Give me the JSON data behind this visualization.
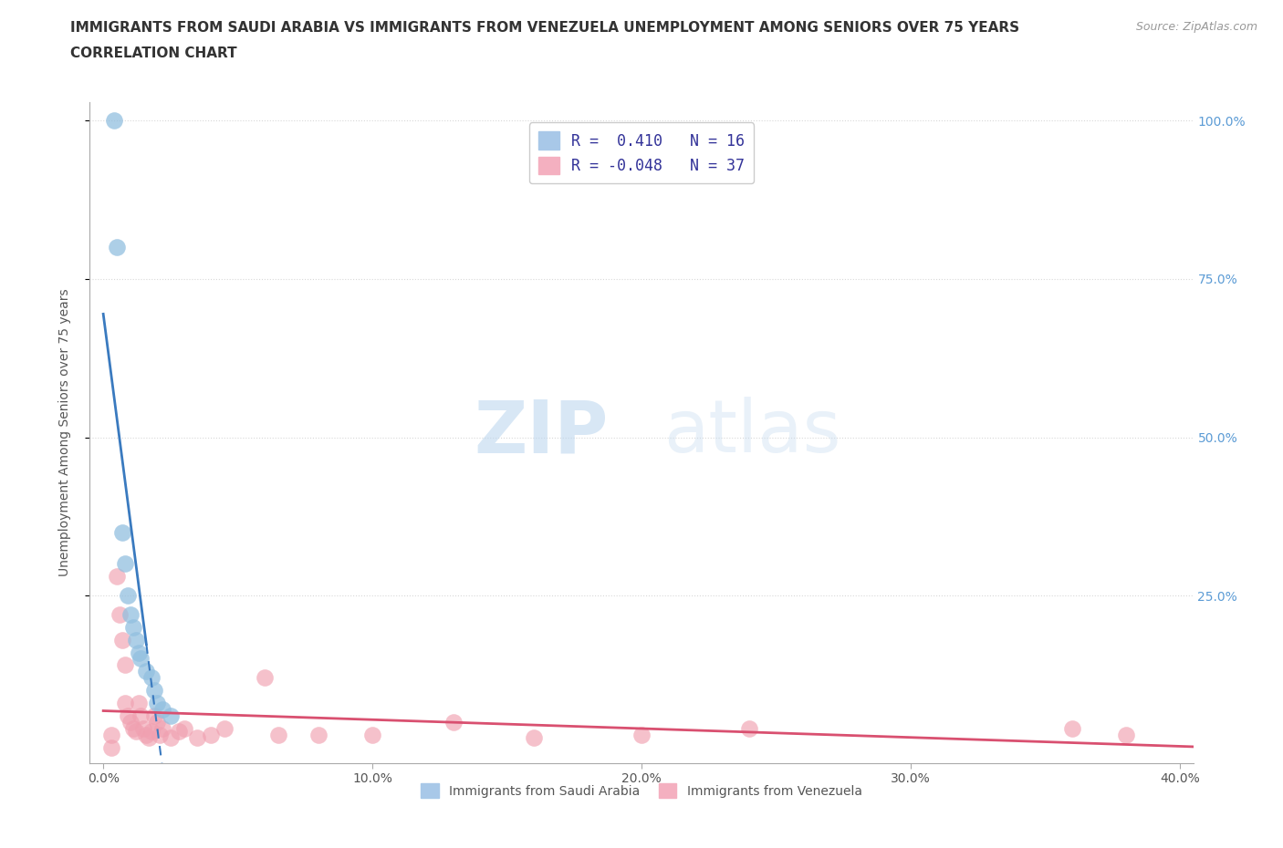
{
  "title_line1": "IMMIGRANTS FROM SAUDI ARABIA VS IMMIGRANTS FROM VENEZUELA UNEMPLOYMENT AMONG SENIORS OVER 75 YEARS",
  "title_line2": "CORRELATION CHART",
  "source_text": "Source: ZipAtlas.com",
  "ylabel": "Unemployment Among Seniors over 75 years",
  "xlim": [
    -0.005,
    0.405
  ],
  "ylim": [
    -0.015,
    1.03
  ],
  "xtick_labels": [
    "0.0%",
    "10.0%",
    "20.0%",
    "30.0%",
    "40.0%"
  ],
  "xtick_vals": [
    0.0,
    0.1,
    0.2,
    0.3,
    0.4
  ],
  "ytick_labels": [
    "25.0%",
    "50.0%",
    "75.0%",
    "100.0%"
  ],
  "ytick_vals": [
    0.25,
    0.5,
    0.75,
    1.0
  ],
  "watermark_zip": "ZIP",
  "watermark_atlas": "atlas",
  "R_saudi": 0.41,
  "N_saudi": 16,
  "R_venezuela": -0.048,
  "N_venezuela": 37,
  "saudi_color": "#92bfdf",
  "venezuela_color": "#f0a0b0",
  "saudi_trend_color": "#3a7abf",
  "venezuela_trend_color": "#d95070",
  "saudi_trend_dash": true,
  "saudi_x": [
    0.004,
    0.005,
    0.007,
    0.008,
    0.009,
    0.01,
    0.011,
    0.012,
    0.013,
    0.014,
    0.016,
    0.018,
    0.019,
    0.02,
    0.022,
    0.025
  ],
  "saudi_y": [
    1.0,
    0.8,
    0.35,
    0.3,
    0.25,
    0.22,
    0.2,
    0.18,
    0.16,
    0.15,
    0.13,
    0.12,
    0.1,
    0.08,
    0.07,
    0.06
  ],
  "venezuela_x": [
    0.003,
    0.005,
    0.006,
    0.007,
    0.008,
    0.008,
    0.009,
    0.01,
    0.011,
    0.012,
    0.013,
    0.014,
    0.015,
    0.016,
    0.017,
    0.018,
    0.019,
    0.02,
    0.021,
    0.022,
    0.025,
    0.028,
    0.03,
    0.035,
    0.04,
    0.045,
    0.06,
    0.065,
    0.08,
    0.1,
    0.13,
    0.16,
    0.2,
    0.24,
    0.36,
    0.38,
    0.003
  ],
  "venezuela_y": [
    0.03,
    0.28,
    0.22,
    0.18,
    0.14,
    0.08,
    0.06,
    0.05,
    0.04,
    0.035,
    0.08,
    0.06,
    0.04,
    0.03,
    0.025,
    0.035,
    0.06,
    0.05,
    0.03,
    0.04,
    0.025,
    0.035,
    0.04,
    0.025,
    0.03,
    0.04,
    0.12,
    0.03,
    0.03,
    0.03,
    0.05,
    0.025,
    0.03,
    0.04,
    0.04,
    0.03,
    0.01
  ],
  "background_color": "#ffffff",
  "grid_color": "#d8d8d8",
  "grid_style": "dotted"
}
